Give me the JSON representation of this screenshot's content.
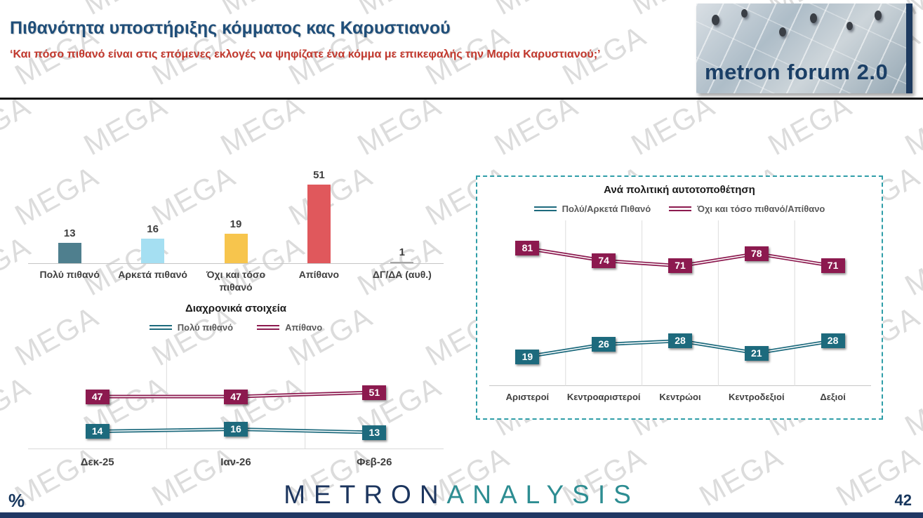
{
  "slide": {
    "title": "Πιθανότητα υποστήριξης κόμματος κας Καρυστιανού",
    "subtitle": "‘Και πόσο πιθανό είναι στις επόμενες εκλογές να ψηφίζατε ένα κόμμα με επικεφαλής την Μαρία Καρυστιανού;’",
    "percent_note": "%",
    "page_number": "42",
    "watermark_text": "MEGA"
  },
  "logo": {
    "brand": "metron forum 2.0"
  },
  "footer_logo": {
    "part1": "METRON",
    "part2": "ANALYSIS"
  },
  "colors": {
    "title_blue": "#1f4e79",
    "subtitle_red": "#c3392e",
    "teal_series": "#1d6a7d",
    "maroon_series": "#8c1a4f",
    "panel_border_teal": "#2f9ea8",
    "bottom_bar_navy": "#203864"
  },
  "chart_data": [
    {
      "type": "bar",
      "title": "",
      "categories": [
        "Πολύ πιθανό",
        "Αρκετά πιθανό",
        "Όχι και τόσο πιθανό",
        "Απίθανο",
        "ΔΓ/ΔΑ (αυθ.)"
      ],
      "values": [
        13,
        16,
        19,
        51,
        1
      ],
      "bar_colors": [
        "#4f7f8e",
        "#a5dff2",
        "#f7c54d",
        "#e0585c",
        "#a6a6a6"
      ],
      "ylim": [
        0,
        60
      ],
      "data_labels": true,
      "legend_position": "none"
    },
    {
      "type": "line",
      "title": "Διαχρονικά στοιχεία",
      "categories": [
        "Δεκ-25",
        "Ιαν-26",
        "Φεβ-26"
      ],
      "series": [
        {
          "name": "Πολύ πιθανό",
          "color": "#1d6a7d",
          "values": [
            14,
            16,
            13
          ]
        },
        {
          "name": "Απίθανο",
          "color": "#8c1a4f",
          "values": [
            47,
            47,
            51
          ]
        }
      ],
      "ylim": [
        0,
        100
      ],
      "data_labels": "boxed",
      "legend_position": "top",
      "grid": "vertical"
    },
    {
      "type": "line",
      "title": "Ανά πολιτική αυτοτοποθέτηση",
      "categories": [
        "Αριστεροί",
        "Κεντροαριστεροί",
        "Κεντρώοι",
        "Κεντροδεξιοί",
        "Δεξιοί"
      ],
      "series": [
        {
          "name": "Πολύ/Αρκετά Πιθανό",
          "color": "#1d6a7d",
          "values": [
            19,
            26,
            28,
            21,
            28
          ]
        },
        {
          "name": "Όχι και τόσο πιθανό/Απίθανο",
          "color": "#8c1a4f",
          "values": [
            81,
            74,
            71,
            78,
            71
          ]
        }
      ],
      "ylim": [
        0,
        100
      ],
      "data_labels": "boxed",
      "legend_position": "top",
      "grid": "vertical"
    }
  ]
}
